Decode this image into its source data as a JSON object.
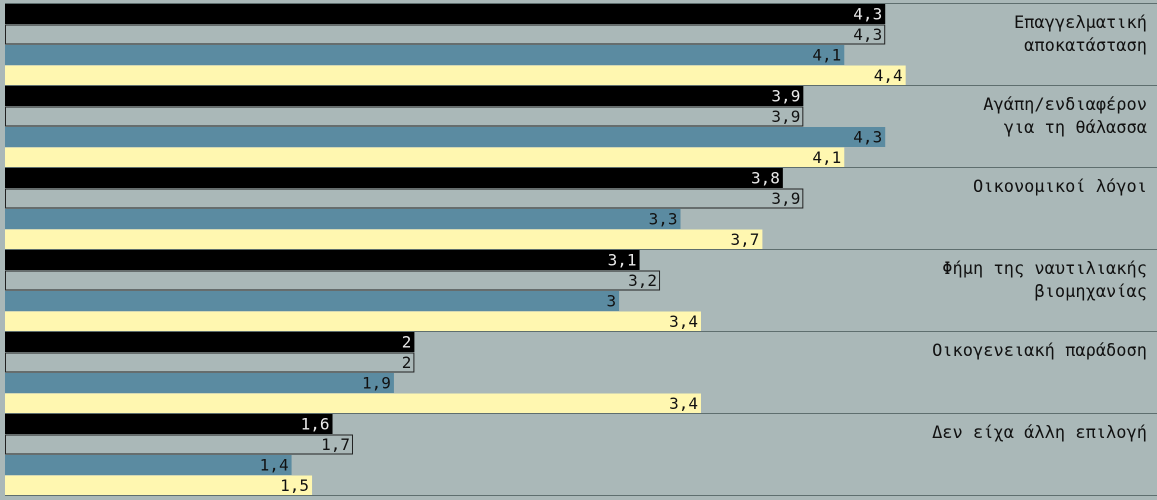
{
  "colors": {
    "background": "#aab8b8",
    "separator": "#5e6e6e",
    "value_text": "#111111",
    "value_text_on_dark": "#e8e8e8"
  },
  "chart_data": {
    "type": "bar",
    "orientation": "horizontal",
    "title": "",
    "xlabel": "",
    "ylabel": "",
    "xlim": [
      0,
      5
    ],
    "grid": false,
    "legend": "none",
    "decimal_separator": ",",
    "categories": [
      [
        "Επαγγελματική",
        "αποκατάσταση"
      ],
      [
        "Αγάπη/ενδιαφέρον",
        "για τη θάλασσα"
      ],
      [
        "Οικονομικοί λόγοι"
      ],
      [
        "Φήμη της ναυτιλιακής",
        "βιομηχανίας"
      ],
      [
        "Οικογενειακή παράδοση"
      ],
      [
        "Δεν είχα άλλη επιλογή"
      ]
    ],
    "series": [
      {
        "color": "#000000",
        "values": [
          4.3,
          3.9,
          3.8,
          3.1,
          2,
          1.6
        ]
      },
      {
        "color": "#aab8b8",
        "outlined": true,
        "values": [
          4.3,
          3.9,
          3.9,
          3.2,
          2,
          1.7
        ]
      },
      {
        "color": "#5b8ba1",
        "values": [
          4.1,
          4.3,
          3.3,
          3,
          1.9,
          1.4
        ]
      },
      {
        "color": "#fff7b0",
        "values": [
          4.4,
          4.1,
          3.7,
          3.4,
          3.4,
          1.5
        ]
      }
    ]
  }
}
